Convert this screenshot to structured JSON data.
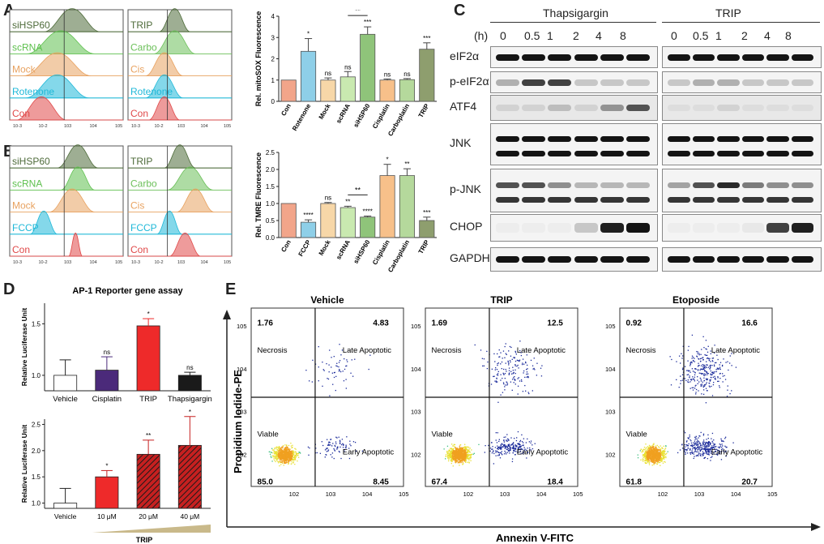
{
  "panels": {
    "A": "A",
    "B": "B",
    "C": "C",
    "D": "D",
    "E": "E"
  },
  "flow": {
    "A_left": [
      {
        "label": "siHSP60",
        "color": "#4e6b3a"
      },
      {
        "label": "scRNA",
        "color": "#5ec04e"
      },
      {
        "label": "Mock",
        "color": "#e8a260"
      },
      {
        "label": "Rotenone",
        "color": "#1fb8d8"
      },
      {
        "label": "Con",
        "color": "#e04848"
      }
    ],
    "A_right": [
      {
        "label": "TRIP",
        "color": "#4e6b3a"
      },
      {
        "label": "Carbo",
        "color": "#6cc05a"
      },
      {
        "label": "Cis",
        "color": "#e8a260"
      },
      {
        "label": "Rotenone",
        "color": "#1fb8d8"
      },
      {
        "label": "Con",
        "color": "#e04848"
      }
    ],
    "B_left": [
      {
        "label": "siHSP60",
        "color": "#4e6b3a"
      },
      {
        "label": "scRNA",
        "color": "#5ec04e"
      },
      {
        "label": "Mock",
        "color": "#e8a260"
      },
      {
        "label": "FCCP",
        "color": "#1fb8d8"
      },
      {
        "label": "Con",
        "color": "#e04848"
      }
    ],
    "B_right": [
      {
        "label": "TRIP",
        "color": "#4e6b3a"
      },
      {
        "label": "Carbo",
        "color": "#6cc05a"
      },
      {
        "label": "Cis",
        "color": "#e8a260"
      },
      {
        "label": "FCCP",
        "color": "#1fb8d8"
      },
      {
        "label": "Con",
        "color": "#e04848"
      }
    ],
    "x_ticks": [
      "10^-3",
      "10^-2",
      "10^3",
      "10^4",
      "10^5"
    ]
  },
  "chart_data": [
    {
      "id": "A_bar",
      "type": "bar",
      "ylabel": "Rel. mitoSOX Fluorescence",
      "ylim": [
        0,
        4
      ],
      "yticks": [
        "0",
        "1",
        "2",
        "3",
        "4"
      ],
      "categories": [
        "Con",
        "Rotenone",
        "Mock",
        "scRNA",
        "siHSP60",
        "Cisplatin",
        "Carboplatin",
        "TRIP"
      ],
      "values": [
        1.0,
        2.35,
        1.0,
        1.15,
        3.15,
        1.0,
        1.02,
        2.45
      ],
      "errors": [
        0,
        0.6,
        0.1,
        0.25,
        0.35,
        0.05,
        0.05,
        0.3
      ],
      "colors": [
        "#f2a58a",
        "#8ecfe8",
        "#f7d7a8",
        "#c9e9b0",
        "#8fc47a",
        "#f7c08a",
        "#b5d99c",
        "#8e9e6e"
      ],
      "sig": [
        "",
        "*",
        "ns",
        "ns",
        "***",
        "ns",
        "ns",
        "***"
      ],
      "bracket": {
        "from": 3,
        "to": 4,
        "label": "**"
      }
    },
    {
      "id": "B_bar",
      "type": "bar",
      "ylabel": "Rel. TMRE Fluorescence",
      "ylim": [
        0,
        2.5
      ],
      "yticks": [
        "0.0",
        "0.5",
        "1.0",
        "1.5",
        "2.0",
        "2.5"
      ],
      "categories": [
        "Con",
        "FCCP",
        "Mock",
        "scRNA",
        "siHSP60",
        "Cisplatin",
        "Carboplatin",
        "TRIP"
      ],
      "values": [
        1.0,
        0.45,
        1.0,
        0.88,
        0.6,
        1.82,
        1.82,
        0.5
      ],
      "errors": [
        0,
        0.07,
        0.03,
        0.04,
        0.03,
        0.33,
        0.2,
        0.1
      ],
      "colors": [
        "#f2a58a",
        "#8ecfe8",
        "#f7d7a8",
        "#c9e9b0",
        "#8fc47a",
        "#f7c08a",
        "#b5d99c",
        "#8e9e6e"
      ],
      "sig": [
        "",
        "****",
        "ns",
        "**",
        "****",
        "*",
        "**",
        "***"
      ],
      "bracket": {
        "from": 3,
        "to": 4,
        "label": "**"
      }
    },
    {
      "id": "D_top",
      "type": "bar",
      "title": "AP-1 Reporter gene assay",
      "ylabel": "Relative Luciferase Unit",
      "ylim": [
        0.85,
        1.7
      ],
      "yticks": [
        "1.0",
        "1.5"
      ],
      "categories": [
        "Vehicle",
        "Cisplatin",
        "TRIP",
        "Thapsigargin"
      ],
      "values": [
        1.0,
        1.05,
        1.48,
        1.0
      ],
      "errors": [
        0.15,
        0.13,
        0.07,
        0.03
      ],
      "colors": [
        "#ffffff",
        "#4b2a7a",
        "#ee2a2a",
        "#1a1a1a"
      ],
      "sig": [
        "",
        "ns",
        "*",
        "ns"
      ]
    },
    {
      "id": "D_bottom",
      "type": "bar",
      "ylabel": "Relative Luciferase Unit",
      "ylim": [
        0.9,
        2.6
      ],
      "yticks": [
        "1.0",
        "1.5",
        "2.0",
        "2.5"
      ],
      "categories": [
        "Vehicle",
        "10 μM",
        "20 μM",
        "40 μM"
      ],
      "xlabel": "TRIP",
      "values": [
        1.0,
        1.5,
        1.93,
        2.1
      ],
      "errors": [
        0.28,
        0.12,
        0.27,
        0.55
      ],
      "colors": [
        "#ffffff",
        "#ee2a2a",
        "#c62020",
        "#c62020"
      ],
      "sig": [
        "",
        "*",
        "**",
        "*"
      ]
    },
    {
      "id": "E_scatter",
      "type": "scatter",
      "xlabel": "Annexin V-FITC",
      "ylabel": "Propidium Iodide-PE",
      "ticks": [
        "10^2",
        "10^3",
        "10^4",
        "10^5"
      ],
      "plots": [
        {
          "title": "Vehicle",
          "q": [
            "1.76",
            "4.83",
            "85.0",
            "8.45"
          ]
        },
        {
          "title": "TRIP",
          "q": [
            "1.69",
            "12.5",
            "67.4",
            "18.4"
          ]
        },
        {
          "title": "Etoposide",
          "q": [
            "0.92",
            "16.6",
            "61.8",
            "20.7"
          ]
        }
      ],
      "quadrant_labels": [
        "Necrosis",
        "Late Apoptotic",
        "Viable",
        "Early Apoptotic"
      ]
    }
  ],
  "western": {
    "groups": [
      "Thapsigargin",
      "TRIP"
    ],
    "time_label": "(h)",
    "times": [
      "0",
      "0.5",
      "1",
      "2",
      "4",
      "8"
    ],
    "rows": [
      "eIF2α",
      "p-eIF2α",
      "ATF4",
      "JNK",
      "p-JNK",
      "CHOP",
      "GAPDH"
    ]
  }
}
